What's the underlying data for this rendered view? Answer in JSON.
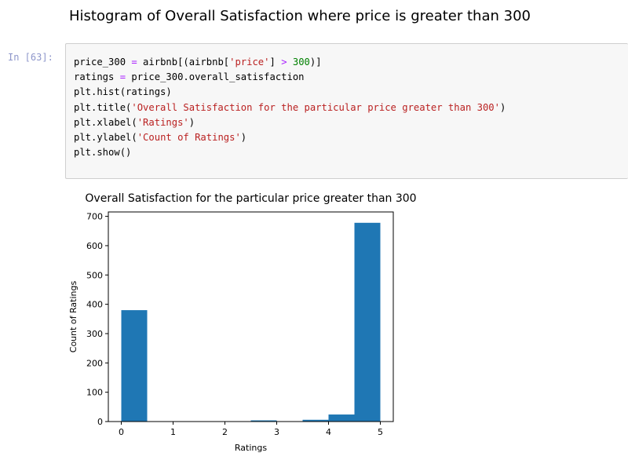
{
  "markdown": {
    "heading": "Histogram of Overall Satisfaction where price is greater than 300"
  },
  "cell": {
    "prompt": "In [63]:",
    "code_lines": [
      [
        {
          "t": "price_300 ",
          "c": "plain"
        },
        {
          "t": "=",
          "c": "op"
        },
        {
          "t": " airbnb[(airbnb[",
          "c": "plain"
        },
        {
          "t": "'price'",
          "c": "str"
        },
        {
          "t": "] ",
          "c": "plain"
        },
        {
          "t": ">",
          "c": "op"
        },
        {
          "t": " ",
          "c": "plain"
        },
        {
          "t": "300",
          "c": "num"
        },
        {
          "t": ")]",
          "c": "plain"
        }
      ],
      [
        {
          "t": "ratings ",
          "c": "plain"
        },
        {
          "t": "=",
          "c": "op"
        },
        {
          "t": " price_300.overall_satisfaction",
          "c": "plain"
        }
      ],
      [
        {
          "t": "plt.hist(ratings)",
          "c": "plain"
        }
      ],
      [
        {
          "t": "plt.title(",
          "c": "plain"
        },
        {
          "t": "'Overall Satisfaction for the particular price greater than 300'",
          "c": "str"
        },
        {
          "t": ")",
          "c": "plain"
        }
      ],
      [
        {
          "t": "plt.xlabel(",
          "c": "plain"
        },
        {
          "t": "'Ratings'",
          "c": "str"
        },
        {
          "t": ")",
          "c": "plain"
        }
      ],
      [
        {
          "t": "plt.ylabel(",
          "c": "plain"
        },
        {
          "t": "'Count of Ratings'",
          "c": "str"
        },
        {
          "t": ")",
          "c": "plain"
        }
      ],
      [
        {
          "t": "plt.show()",
          "c": "plain"
        }
      ]
    ]
  },
  "colors": {
    "bar": "#1f77b4",
    "code_string": "#ba2121",
    "code_number": "#008000",
    "code_operator": "#aa22ff",
    "prompt": "#303f9f",
    "cell_background": "#f7f7f7",
    "cell_border": "#cfcfcf"
  },
  "chart_data": {
    "type": "bar",
    "title": "Overall Satisfaction for the particular price greater than 300",
    "xlabel": "Ratings",
    "ylabel": "Count of Ratings",
    "xlim": [
      -0.25,
      5.25
    ],
    "ylim": [
      0,
      715
    ],
    "xticks": [
      0,
      1,
      2,
      3,
      4,
      5
    ],
    "yticks": [
      0,
      100,
      200,
      300,
      400,
      500,
      600,
      700
    ],
    "bins": [
      {
        "x0": 0.0,
        "x1": 0.5,
        "count": 380
      },
      {
        "x0": 0.5,
        "x1": 1.0,
        "count": 0
      },
      {
        "x0": 1.0,
        "x1": 1.5,
        "count": 0
      },
      {
        "x0": 1.5,
        "x1": 2.0,
        "count": 0
      },
      {
        "x0": 2.0,
        "x1": 2.5,
        "count": 0
      },
      {
        "x0": 2.5,
        "x1": 3.0,
        "count": 4
      },
      {
        "x0": 3.0,
        "x1": 3.5,
        "count": 0
      },
      {
        "x0": 3.5,
        "x1": 4.0,
        "count": 6
      },
      {
        "x0": 4.0,
        "x1": 4.5,
        "count": 24
      },
      {
        "x0": 4.5,
        "x1": 5.0,
        "count": 678
      }
    ],
    "grid": false,
    "legend": "none"
  }
}
